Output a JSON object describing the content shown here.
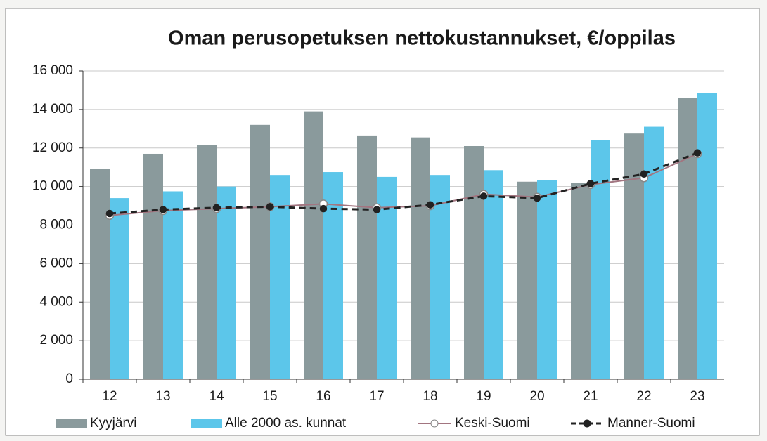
{
  "chart_data": {
    "type": "bar",
    "title": "Oman perusopetuksen nettokustannukset, €/oppilas",
    "categories": [
      "12",
      "13",
      "14",
      "15",
      "16",
      "17",
      "18",
      "19",
      "20",
      "21",
      "22",
      "23"
    ],
    "series": [
      {
        "name": "Kyyjärvi",
        "type": "bar",
        "color": "#8a9a9c",
        "values": [
          10900,
          11700,
          12150,
          13200,
          13900,
          12650,
          12550,
          12100,
          10250,
          10200,
          12750,
          14600
        ]
      },
      {
        "name": "Alle 2000 as. kunnat",
        "type": "bar",
        "color": "#5cc6ea",
        "values": [
          9400,
          9750,
          10000,
          10600,
          10750,
          10500,
          10600,
          10850,
          10350,
          12400,
          13100,
          14850
        ]
      },
      {
        "name": "Keski-Suomi",
        "type": "line",
        "color": "#a27580",
        "marker": "open",
        "dashed": false,
        "values": [
          8500,
          8750,
          8850,
          8950,
          9100,
          8900,
          9000,
          9600,
          9450,
          10100,
          10450,
          11700
        ]
      },
      {
        "name": "Manner-Suomi",
        "type": "line",
        "color": "#222222",
        "marker": "filled",
        "dashed": true,
        "values": [
          8600,
          8800,
          8900,
          8950,
          8850,
          8800,
          9050,
          9500,
          9400,
          10150,
          10650,
          11750
        ]
      }
    ],
    "ylim": [
      0,
      16000
    ],
    "yticks": [
      0,
      {
        "value": 2000,
        "label": "2 000"
      },
      {
        "value": 4000,
        "label": "4 000"
      },
      {
        "value": 6000,
        "label": "6 000"
      },
      {
        "value": 8000,
        "label": "8 000"
      },
      {
        "value": 10000,
        "label": "10 000"
      },
      {
        "value": 12000,
        "label": "12 000"
      },
      {
        "value": 14000,
        "label": "14 000"
      },
      {
        "value": 16000,
        "label": "16 000"
      }
    ],
    "grid": true,
    "legend": "bottom"
  }
}
